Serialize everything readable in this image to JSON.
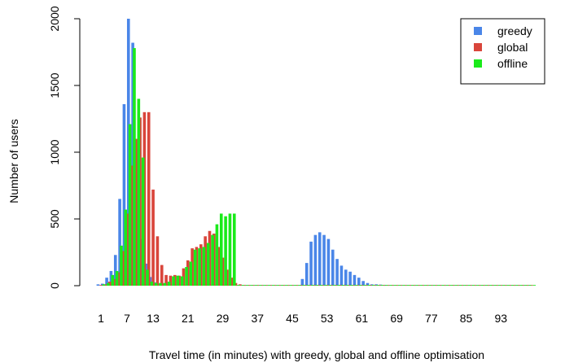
{
  "chart_data": {
    "type": "bar",
    "xlabel": "Travel time (in minutes) with greedy, global and offline optimisation",
    "ylabel": "Number of users",
    "x_tick_labels": [
      "1",
      "7",
      "13",
      "21",
      "29",
      "37",
      "45",
      "53",
      "61",
      "69",
      "77",
      "85",
      "93"
    ],
    "x_tick_values": [
      1,
      7,
      13,
      21,
      29,
      37,
      45,
      53,
      61,
      69,
      77,
      85,
      93
    ],
    "y_ticks": [
      0,
      500,
      1000,
      1500,
      2000
    ],
    "y_tick_labels": [
      "0",
      "500",
      "1000",
      "1500",
      "2000"
    ],
    "ylim": [
      0,
      2000
    ],
    "xlim": [
      1,
      100
    ],
    "legend_position": "top-right",
    "legend": [
      "greedy",
      "global",
      "offline"
    ],
    "x": [
      1,
      2,
      3,
      4,
      5,
      6,
      7,
      8,
      9,
      10,
      11,
      12,
      13,
      14,
      15,
      16,
      17,
      18,
      19,
      20,
      21,
      22,
      23,
      24,
      25,
      26,
      27,
      28,
      29,
      30,
      31,
      32,
      33,
      34,
      35,
      36,
      37,
      38,
      39,
      40,
      41,
      42,
      43,
      44,
      45,
      46,
      47,
      48,
      49,
      50,
      51,
      52,
      53,
      54,
      55,
      56,
      57,
      58,
      59,
      60,
      61,
      62,
      63,
      64,
      65,
      66,
      67,
      68,
      69,
      70,
      71,
      72,
      73,
      74,
      75,
      76,
      77,
      78,
      79,
      80,
      81,
      82,
      83,
      84,
      85,
      86,
      87,
      88,
      89,
      90,
      91,
      92,
      93,
      94,
      95,
      96,
      97,
      98,
      99,
      100
    ],
    "series": [
      {
        "name": "greedy",
        "color": "#4a86e8",
        "values": [
          10,
          15,
          60,
          110,
          230,
          650,
          1360,
          2000,
          1820,
          1030,
          350,
          165,
          65,
          25,
          10,
          10,
          10,
          5,
          5,
          5,
          5,
          5,
          5,
          5,
          5,
          5,
          5,
          5,
          5,
          5,
          5,
          5,
          5,
          5,
          5,
          5,
          5,
          5,
          5,
          5,
          5,
          5,
          5,
          5,
          5,
          5,
          5,
          50,
          170,
          330,
          380,
          400,
          380,
          350,
          270,
          200,
          150,
          120,
          105,
          80,
          60,
          35,
          20,
          10,
          10,
          8,
          6,
          5,
          5,
          5,
          5,
          5,
          5,
          5,
          5,
          5,
          5,
          5,
          5,
          5,
          5,
          5,
          5,
          5,
          5,
          5,
          5,
          5,
          5,
          5,
          5,
          5,
          5,
          5,
          5,
          5,
          5,
          5,
          5,
          5
        ]
      },
      {
        "name": "global",
        "color": "#d9453b",
        "values": [
          5,
          10,
          30,
          50,
          100,
          260,
          540,
          900,
          1100,
          1260,
          1300,
          1300,
          720,
          370,
          155,
          80,
          75,
          80,
          75,
          130,
          190,
          280,
          290,
          310,
          370,
          410,
          390,
          290,
          210,
          120,
          60,
          20,
          10,
          5,
          5,
          5,
          5,
          5,
          5,
          5,
          5,
          5,
          5,
          5,
          5,
          5,
          5,
          5,
          5,
          5,
          5,
          5,
          5,
          5,
          5,
          5,
          5,
          5,
          5,
          5,
          5,
          5,
          5,
          5,
          5,
          5,
          5,
          5,
          5,
          5,
          5,
          5,
          5,
          5,
          5,
          5,
          5,
          5,
          5,
          5,
          5,
          5,
          5,
          5,
          5,
          5,
          5,
          5,
          5,
          5,
          5,
          5,
          5,
          5,
          5,
          5,
          5,
          5,
          5,
          5
        ]
      },
      {
        "name": "offline",
        "color": "#1aea1a",
        "values": [
          10,
          20,
          80,
          110,
          300,
          570,
          1210,
          1780,
          1400,
          960,
          120,
          30,
          20,
          20,
          20,
          30,
          70,
          75,
          70,
          140,
          180,
          270,
          280,
          290,
          320,
          380,
          460,
          540,
          520,
          540,
          540,
          5,
          5,
          5,
          5,
          5,
          5,
          5,
          5,
          5,
          5,
          5,
          5,
          5,
          5,
          5,
          5,
          5,
          5,
          5,
          5,
          5,
          5,
          5,
          5,
          5,
          5,
          5,
          5,
          5,
          5,
          5,
          5,
          5,
          5,
          5,
          5,
          5,
          5,
          5,
          5,
          5,
          5,
          5,
          5,
          5,
          5,
          5,
          5,
          5,
          5,
          5,
          5,
          5,
          5,
          5,
          5,
          5,
          5,
          5,
          5,
          5,
          5,
          5,
          5,
          5,
          5,
          5,
          5,
          5
        ]
      }
    ]
  }
}
